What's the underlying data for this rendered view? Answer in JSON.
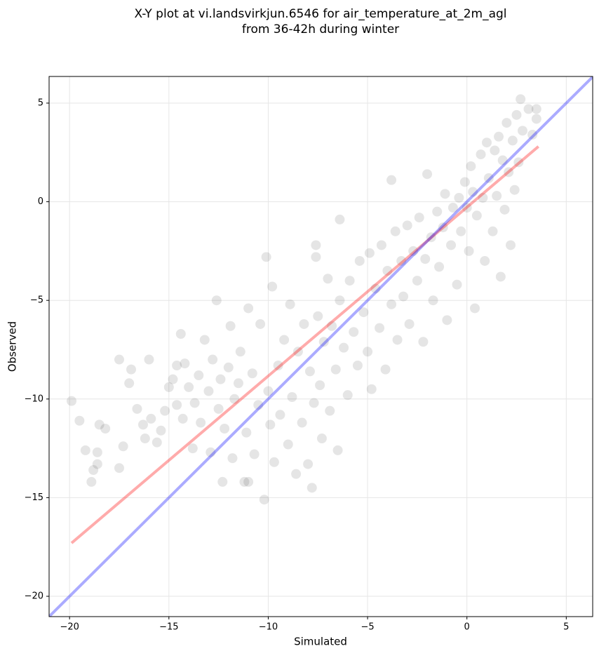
{
  "chart_data": {
    "type": "scatter",
    "title": [
      "X-Y plot at vi.landsvirkjun.6546 for air_temperature_at_2m_agl",
      "from 36-42h during winter"
    ],
    "xlabel": "Simulated",
    "ylabel": "Observed",
    "xlim": [
      -21.03,
      6.33
    ],
    "ylim": [
      -21.03,
      6.35
    ],
    "xticks": [
      {
        "value": -20,
        "label": "−20"
      },
      {
        "value": -15,
        "label": "−15"
      },
      {
        "value": -10,
        "label": "−10"
      },
      {
        "value": -5,
        "label": "−5"
      },
      0,
      5
    ],
    "yticks": [
      {
        "value": -20,
        "label": "−20"
      },
      {
        "value": -15,
        "label": "−15"
      },
      {
        "value": -10,
        "label": "−10"
      },
      {
        "value": -5,
        "label": "−5"
      },
      0,
      5
    ],
    "grid": true,
    "color": "#000000",
    "x": [
      -19.9,
      -19.5,
      -19.2,
      -18.8,
      -18.9,
      -18.6,
      -18.5,
      -18.2,
      -18.6,
      -17.5,
      -17.5,
      -17.3,
      -17.0,
      -16.9,
      -16.6,
      -16.3,
      -16.0,
      -16.2,
      -15.9,
      -15.6,
      -15.4,
      -15.2,
      -15.0,
      -14.8,
      -14.6,
      -14.4,
      -14.3,
      -14.2,
      -14.0,
      -13.8,
      -13.7,
      -13.5,
      -13.4,
      -13.2,
      -13.0,
      -12.9,
      -12.8,
      -12.6,
      -12.5,
      -12.4,
      -12.3,
      -12.2,
      -12.0,
      -11.9,
      -11.8,
      -11.7,
      -11.5,
      -11.4,
      -11.2,
      -11.1,
      -11.0,
      -10.8,
      -10.7,
      -10.5,
      -10.4,
      -10.2,
      -10.1,
      -10.0,
      -9.9,
      -9.8,
      -9.7,
      -9.5,
      -9.4,
      -9.2,
      -9.0,
      -8.9,
      -8.8,
      -8.6,
      -8.5,
      -8.3,
      -8.2,
      -8.0,
      -7.9,
      -7.8,
      -7.7,
      -7.6,
      -7.5,
      -7.4,
      -7.3,
      -7.2,
      -7.0,
      -6.9,
      -6.8,
      -6.6,
      -6.5,
      -6.4,
      -6.2,
      -6.0,
      -5.9,
      -5.7,
      -5.5,
      -5.4,
      -5.2,
      -5.0,
      -4.9,
      -4.8,
      -4.6,
      -4.4,
      -4.3,
      -4.1,
      -4.0,
      -3.8,
      -3.6,
      -3.5,
      -3.3,
      -3.2,
      -3.0,
      -2.9,
      -2.7,
      -2.5,
      -2.4,
      -2.2,
      -2.1,
      -2.0,
      -1.8,
      -1.7,
      -1.5,
      -1.4,
      -1.2,
      -1.1,
      -1.0,
      -0.8,
      -0.7,
      -0.5,
      -0.4,
      -0.3,
      -0.1,
      0.0,
      0.1,
      0.2,
      0.3,
      0.4,
      0.5,
      0.7,
      0.8,
      0.9,
      1.0,
      1.1,
      1.3,
      1.4,
      1.5,
      1.6,
      1.7,
      1.8,
      1.9,
      2.0,
      2.1,
      2.2,
      2.3,
      2.4,
      2.5,
      2.6,
      2.7,
      2.8,
      3.1,
      3.3,
      3.5,
      3.5,
      -6.4,
      -3.8,
      -7.6,
      -11.0,
      -14.6
    ],
    "y": [
      -10.1,
      -11.1,
      -12.6,
      -13.6,
      -14.2,
      -12.7,
      -11.3,
      -11.5,
      -13.3,
      -8.0,
      -13.5,
      -12.4,
      -9.2,
      -8.5,
      -10.5,
      -11.3,
      -8.0,
      -12.0,
      -11.0,
      -12.2,
      -11.6,
      -10.6,
      -9.4,
      -9.0,
      -10.3,
      -6.7,
      -11.0,
      -8.2,
      -9.4,
      -12.5,
      -10.2,
      -8.8,
      -11.2,
      -7.0,
      -9.6,
      -12.7,
      -8.0,
      -5.0,
      -10.5,
      -9.0,
      -14.2,
      -11.5,
      -8.4,
      -6.3,
      -13.0,
      -10.0,
      -9.2,
      -7.6,
      -14.2,
      -11.7,
      -5.4,
      -8.7,
      -12.8,
      -10.3,
      -6.2,
      -15.1,
      -2.8,
      -9.6,
      -11.3,
      -4.3,
      -13.2,
      -8.3,
      -10.8,
      -7.0,
      -12.3,
      -5.2,
      -9.9,
      -13.8,
      -7.6,
      -11.2,
      -6.2,
      -13.3,
      -8.6,
      -14.5,
      -10.2,
      -2.8,
      -5.8,
      -9.3,
      -12.0,
      -7.1,
      -3.9,
      -10.6,
      -6.3,
      -8.5,
      -12.6,
      -5.0,
      -7.4,
      -9.8,
      -4.0,
      -6.6,
      -8.3,
      -3.0,
      -5.6,
      -7.6,
      -2.6,
      -9.5,
      -4.4,
      -6.4,
      -2.2,
      -8.5,
      -3.5,
      -5.2,
      -1.5,
      -7.0,
      -3.0,
      -4.8,
      -1.2,
      -6.2,
      -2.5,
      -4.0,
      -0.8,
      -7.1,
      -2.9,
      1.4,
      -1.8,
      -5.0,
      -0.5,
      -3.3,
      -1.3,
      0.4,
      -6.0,
      -2.2,
      -0.3,
      -4.2,
      0.2,
      -1.5,
      1.0,
      -0.3,
      -2.5,
      1.8,
      0.5,
      -5.4,
      -0.7,
      2.4,
      0.2,
      -3.0,
      3.0,
      1.2,
      -1.5,
      2.6,
      0.3,
      3.3,
      -3.8,
      2.1,
      -0.4,
      4.0,
      1.5,
      -2.2,
      3.1,
      0.6,
      4.4,
      2.0,
      5.2,
      3.6,
      4.7,
      3.4,
      4.7,
      4.2,
      -0.9,
      1.1,
      -2.2,
      -14.2,
      -8.3
    ],
    "lines": [
      {
        "color": "#ff0000",
        "x": [
          -19.9,
          3.6
        ],
        "y": [
          -17.3,
          2.8
        ]
      },
      {
        "color": "#0000ff",
        "x": [
          -21.03,
          6.33
        ],
        "y": [
          -21.03,
          6.33
        ]
      }
    ]
  }
}
